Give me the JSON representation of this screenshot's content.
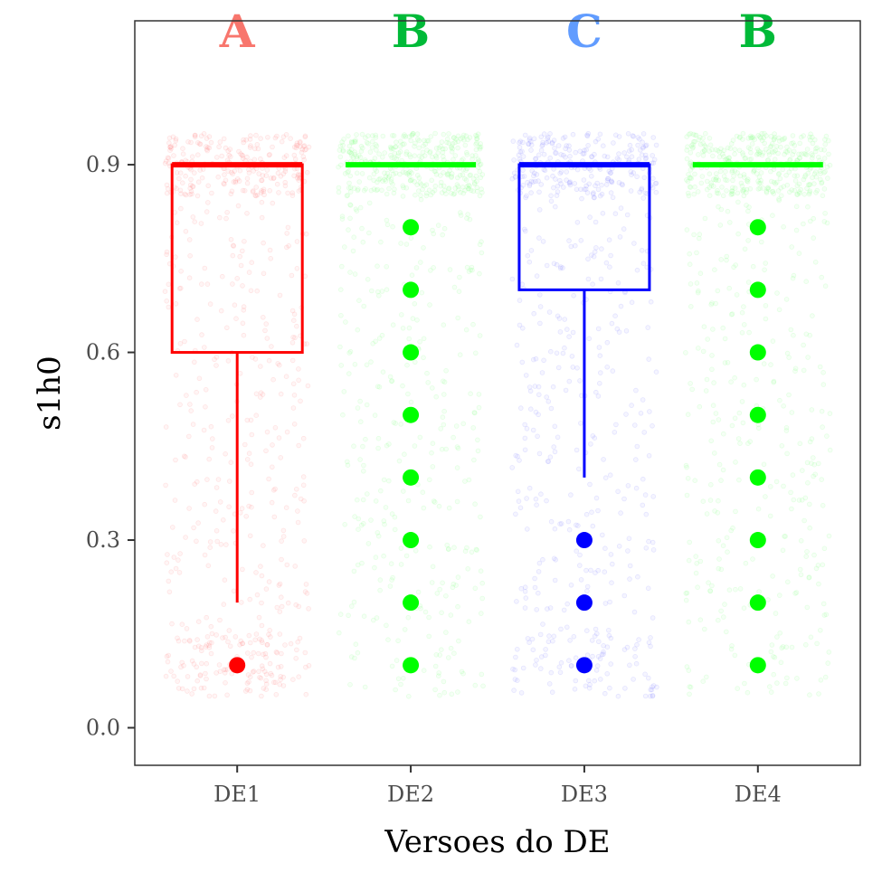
{
  "chart_data": {
    "type": "boxplot",
    "title": "",
    "xlabel": "Versoes do DE",
    "ylabel": "s1h0",
    "categories": [
      "DE1",
      "DE2",
      "DE3",
      "DE4"
    ],
    "yticks": [
      "0.0",
      "0.3",
      "0.6",
      "0.9"
    ],
    "ylim": [
      -0.06,
      1.13
    ],
    "grid": false,
    "legend": "none",
    "jitter_points": "dense semi-transparent jittered observations behind each box",
    "series": [
      {
        "category": "DE1",
        "color": "#ff0000",
        "jitter_color": "#ff8080",
        "letter": "A",
        "letter_color": "#f8766d",
        "q1": 0.6,
        "median": 0.9,
        "q3": 0.9,
        "whisker_low": 0.2,
        "whisker_high": 0.9,
        "outliers": [
          0.1
        ]
      },
      {
        "category": "DE2",
        "color": "#00ff00",
        "jitter_color": "#80ff80",
        "letter": "B",
        "letter_color": "#00ba38",
        "q1": 0.9,
        "median": 0.9,
        "q3": 0.9,
        "whisker_low": 0.9,
        "whisker_high": 0.9,
        "outliers": [
          0.1,
          0.2,
          0.3,
          0.4,
          0.5,
          0.6,
          0.7,
          0.8
        ]
      },
      {
        "category": "DE3",
        "color": "#0000ff",
        "jitter_color": "#8080ff",
        "letter": "C",
        "letter_color": "#619cff",
        "q1": 0.7,
        "median": 0.9,
        "q3": 0.9,
        "whisker_low": 0.4,
        "whisker_high": 0.9,
        "outliers": [
          0.1,
          0.2,
          0.3
        ]
      },
      {
        "category": "DE4",
        "color": "#00ff00",
        "jitter_color": "#80ff80",
        "letter": "B",
        "letter_color": "#00ba38",
        "q1": 0.9,
        "median": 0.9,
        "q3": 0.9,
        "whisker_low": 0.9,
        "whisker_high": 0.9,
        "outliers": [
          0.1,
          0.2,
          0.3,
          0.4,
          0.5,
          0.6,
          0.7,
          0.8
        ]
      }
    ]
  }
}
